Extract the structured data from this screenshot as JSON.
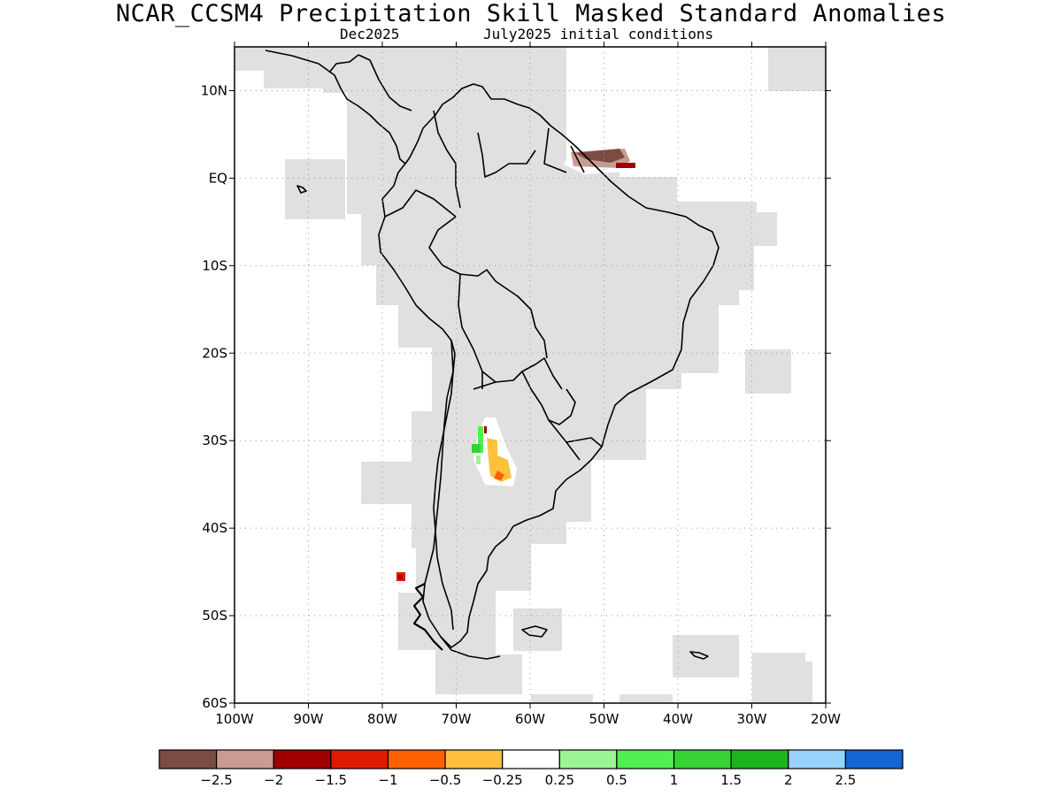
{
  "title": "NCAR_CCSM4 Precipitation Skill Masked Standard Anomalies",
  "subtitle": {
    "target_month": "Dec2025",
    "initial_conditions": "July2025 initial conditions"
  },
  "map": {
    "region": "South America",
    "lon_range": [
      -100,
      -20
    ],
    "lat_range": [
      -60,
      15
    ],
    "grid": true,
    "mask_color": "#e0e0e0",
    "coast_color": "#000000",
    "lat_ticks": [
      {
        "value": 10,
        "label": "10N"
      },
      {
        "value": 0,
        "label": "EQ"
      },
      {
        "value": -10,
        "label": "10S"
      },
      {
        "value": -20,
        "label": "20S"
      },
      {
        "value": -30,
        "label": "30S"
      },
      {
        "value": -40,
        "label": "40S"
      },
      {
        "value": -50,
        "label": "50S"
      },
      {
        "value": -60,
        "label": "60S"
      }
    ],
    "lon_ticks": [
      {
        "value": -100,
        "label": "100W"
      },
      {
        "value": -90,
        "label": "90W"
      },
      {
        "value": -80,
        "label": "80W"
      },
      {
        "value": -70,
        "label": "70W"
      },
      {
        "value": -60,
        "label": "60W"
      },
      {
        "value": -50,
        "label": "50W"
      },
      {
        "value": -40,
        "label": "40W"
      },
      {
        "value": -30,
        "label": "30W"
      },
      {
        "value": -20,
        "label": "20W"
      }
    ],
    "anomaly_regions": [
      {
        "name": "guiana-coast",
        "lon": [
          -53,
          -46
        ],
        "lat": [
          3,
          5
        ],
        "level": "-2.5 to -2"
      },
      {
        "name": "central-argentina",
        "lon": [
          -68,
          -62
        ],
        "lat": [
          -34,
          -28
        ],
        "level": "-0.5 to 1"
      },
      {
        "name": "chile-offshore",
        "lon": [
          -78,
          -77
        ],
        "lat": [
          -46,
          -45
        ],
        "level": "-1.5 to -1"
      }
    ]
  },
  "colorbar": {
    "colors": [
      "#7b4c42",
      "#c89c92",
      "#a00000",
      "#e01a00",
      "#ff6000",
      "#ffc03c",
      "#ffffff",
      "#9af592",
      "#50f050",
      "#36d236",
      "#1eb41e",
      "#96d2fa",
      "#1464d2"
    ],
    "labels": [
      "−2.5",
      "−2",
      "−1.5",
      "−1",
      "−0.5",
      "−0.25",
      "0.25",
      "0.5",
      "1",
      "1.5",
      "2",
      "2.5"
    ]
  }
}
